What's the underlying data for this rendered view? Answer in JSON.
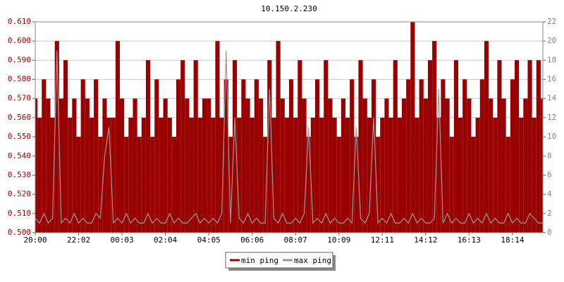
{
  "chart_data": {
    "type": "bar",
    "title": "10.150.2.230",
    "categories": [
      "20:00",
      null,
      null,
      null,
      null,
      null,
      null,
      null,
      null,
      null,
      "22:02",
      null,
      null,
      null,
      null,
      null,
      null,
      null,
      null,
      null,
      "00:03",
      null,
      null,
      null,
      null,
      null,
      null,
      null,
      null,
      null,
      "02:04",
      null,
      null,
      null,
      null,
      null,
      null,
      null,
      null,
      null,
      "04:05",
      null,
      null,
      null,
      null,
      null,
      null,
      null,
      null,
      null,
      "06:06",
      null,
      null,
      null,
      null,
      null,
      null,
      null,
      null,
      null,
      "08:07",
      null,
      null,
      null,
      null,
      null,
      null,
      null,
      null,
      null,
      "10:09",
      null,
      null,
      null,
      null,
      null,
      null,
      null,
      null,
      null,
      "12:11",
      null,
      null,
      null,
      null,
      null,
      null,
      null,
      null,
      null,
      "14:12",
      null,
      null,
      null,
      null,
      null,
      null,
      null,
      null,
      null,
      "16:13",
      null,
      null,
      null,
      null,
      null,
      null,
      null,
      null,
      null,
      "18:14",
      null,
      null,
      null,
      null,
      null,
      null,
      null
    ],
    "series": [
      {
        "name": "min ping",
        "color": "#990000",
        "type": "bar",
        "values": [
          0.57,
          0.56,
          0.58,
          0.57,
          0.56,
          0.6,
          0.57,
          0.59,
          0.56,
          0.57,
          0.55,
          0.58,
          0.57,
          0.56,
          0.58,
          0.55,
          0.57,
          0.56,
          0.56,
          0.6,
          0.57,
          0.55,
          0.56,
          0.57,
          0.55,
          0.56,
          0.59,
          0.55,
          0.58,
          0.56,
          0.57,
          0.56,
          0.55,
          0.58,
          0.59,
          0.57,
          0.56,
          0.59,
          0.56,
          0.57,
          0.57,
          0.56,
          0.6,
          0.56,
          0.58,
          0.55,
          0.59,
          0.56,
          0.58,
          0.57,
          0.56,
          0.58,
          0.57,
          0.55,
          0.59,
          0.56,
          0.6,
          0.57,
          0.56,
          0.58,
          0.56,
          0.59,
          0.57,
          0.55,
          0.56,
          0.58,
          0.56,
          0.59,
          0.57,
          0.56,
          0.55,
          0.57,
          0.56,
          0.58,
          0.55,
          0.59,
          0.57,
          0.56,
          0.58,
          0.55,
          0.56,
          0.57,
          0.56,
          0.59,
          0.56,
          0.57,
          0.58,
          0.61,
          0.56,
          0.58,
          0.57,
          0.59,
          0.6,
          0.56,
          0.58,
          0.57,
          0.55,
          0.59,
          0.56,
          0.58,
          0.57,
          0.55,
          0.56,
          0.58,
          0.6,
          0.57,
          0.56,
          0.59,
          0.57,
          0.55,
          0.58,
          0.59,
          0.56,
          0.57,
          0.59,
          0.56,
          0.59,
          0.57
        ]
      },
      {
        "name": "max ping",
        "color": "#999999",
        "type": "line",
        "axis": "y2",
        "values": [
          1.5,
          1,
          2,
          1,
          1.5,
          19,
          1,
          1.5,
          1,
          2,
          1,
          1.5,
          1,
          1,
          2,
          1.5,
          8,
          11,
          1,
          1.5,
          1,
          2,
          1,
          1.5,
          1,
          1,
          2,
          1,
          1.5,
          1,
          1,
          2,
          1,
          1.5,
          1,
          1,
          1.5,
          2,
          1,
          1.5,
          1,
          1.5,
          1,
          2,
          19,
          1,
          12,
          1.5,
          1,
          2,
          1,
          1.5,
          1,
          1,
          15,
          1.5,
          1,
          2,
          1,
          1,
          1.5,
          1,
          2,
          11,
          1,
          1.5,
          1,
          2,
          1,
          1.5,
          1,
          1,
          1.5,
          1,
          11,
          1.5,
          1,
          2,
          12,
          1,
          1.5,
          1,
          2,
          1,
          1,
          1.5,
          1,
          2,
          1,
          1.5,
          1,
          1,
          1.5,
          15,
          1,
          2,
          1,
          1.5,
          1,
          1,
          2,
          1,
          1.5,
          1,
          2,
          1,
          1.5,
          1,
          1,
          2,
          1,
          1.5,
          1,
          1,
          2,
          1.5,
          1,
          1
        ]
      }
    ],
    "ylim": [
      0.5,
      0.61
    ],
    "yticks": [
      {
        "value": 0.5,
        "label": "0.500"
      },
      {
        "value": 0.51,
        "label": "0.510"
      },
      {
        "value": 0.52,
        "label": "0.520"
      },
      {
        "value": 0.53,
        "label": "0.530"
      },
      {
        "value": 0.54,
        "label": "0.540"
      },
      {
        "value": 0.55,
        "label": "0.550"
      },
      {
        "value": 0.56,
        "label": "0.560"
      },
      {
        "value": 0.57,
        "label": "0.570"
      },
      {
        "value": 0.58,
        "label": "0.580"
      },
      {
        "value": 0.59,
        "label": "0.590"
      },
      {
        "value": 0.6,
        "label": "0.600"
      },
      {
        "value": 0.61,
        "label": "0.610"
      }
    ],
    "y2lim": [
      0,
      22
    ],
    "y2ticks": [
      0,
      2,
      4,
      6,
      8,
      10,
      12,
      14,
      16,
      18,
      20,
      22
    ],
    "grid": true
  }
}
